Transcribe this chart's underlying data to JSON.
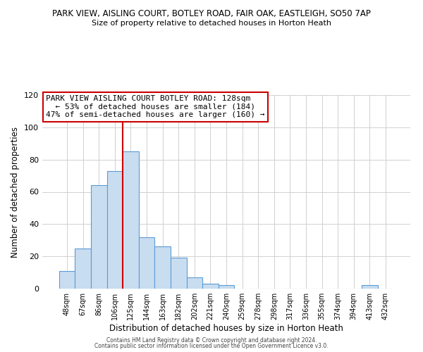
{
  "title1": "PARK VIEW, AISLING COURT, BOTLEY ROAD, FAIR OAK, EASTLEIGH, SO50 7AP",
  "title2": "Size of property relative to detached houses in Horton Heath",
  "xlabel": "Distribution of detached houses by size in Horton Heath",
  "ylabel": "Number of detached properties",
  "bin_labels": [
    "48sqm",
    "67sqm",
    "86sqm",
    "106sqm",
    "125sqm",
    "144sqm",
    "163sqm",
    "182sqm",
    "202sqm",
    "221sqm",
    "240sqm",
    "259sqm",
    "278sqm",
    "298sqm",
    "317sqm",
    "336sqm",
    "355sqm",
    "374sqm",
    "394sqm",
    "413sqm",
    "432sqm"
  ],
  "bar_values": [
    11,
    25,
    64,
    73,
    85,
    32,
    26,
    19,
    7,
    3,
    2,
    0,
    0,
    0,
    0,
    0,
    0,
    0,
    0,
    2,
    0
  ],
  "bar_color": "#c9ddf0",
  "bar_edge_color": "#5b9bd5",
  "vline_x_index": 4,
  "vline_color": "#cc0000",
  "ylim": [
    0,
    120
  ],
  "yticks": [
    0,
    20,
    40,
    60,
    80,
    100,
    120
  ],
  "annotation_title": "PARK VIEW AISLING COURT BOTLEY ROAD: 128sqm",
  "annotation_line1": "  ← 53% of detached houses are smaller (184)",
  "annotation_line2": "47% of semi-detached houses are larger (160) →",
  "annotation_box_color": "#ffffff",
  "annotation_box_edge": "#cc0000",
  "footer1": "Contains HM Land Registry data © Crown copyright and database right 2024.",
  "footer2": "Contains public sector information licensed under the Open Government Licence v3.0.",
  "background_color": "#ffffff",
  "grid_color": "#d0d0d0"
}
